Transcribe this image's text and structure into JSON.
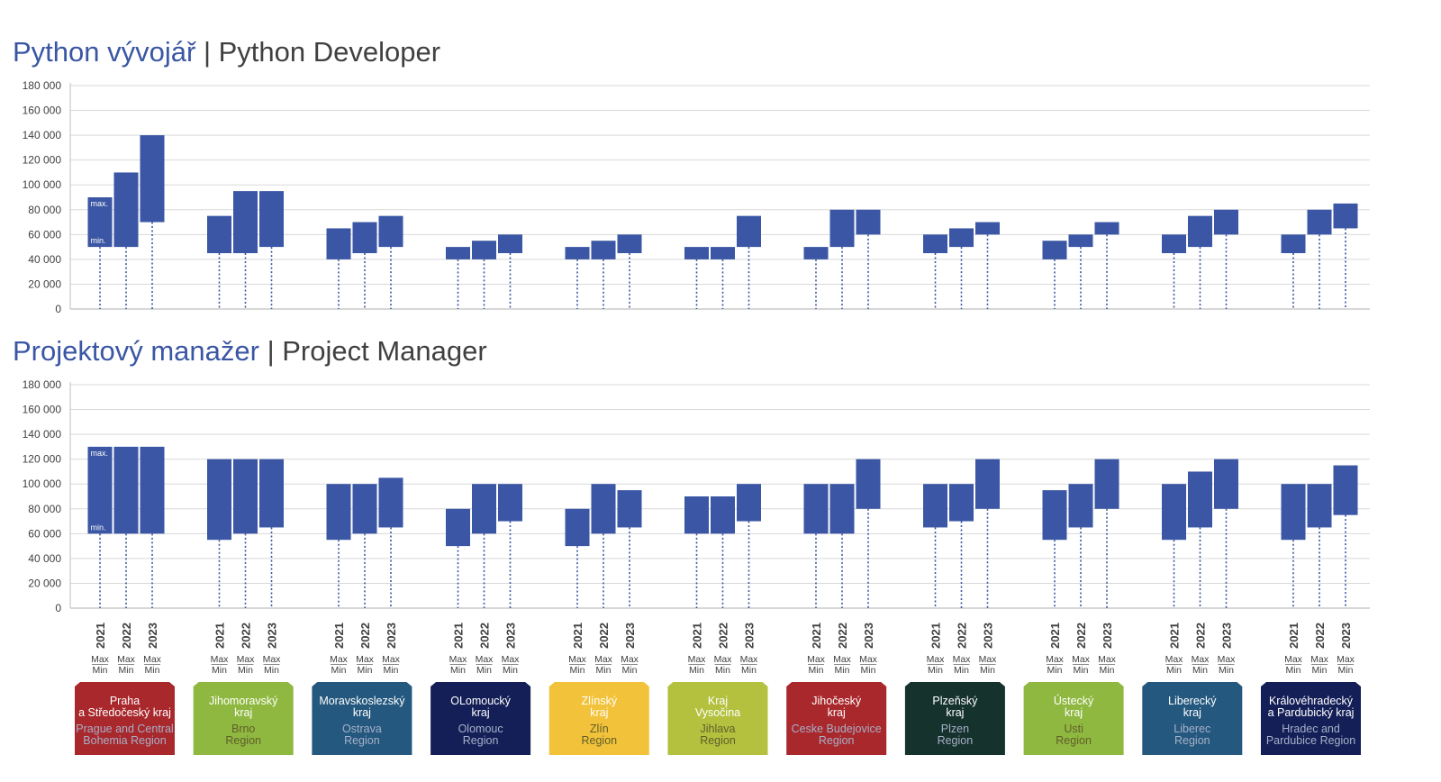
{
  "charts_meta": {
    "python": {
      "title_cz": "Python vývojář",
      "title_sep": " | ",
      "title_en": "Python Developer"
    },
    "pm": {
      "title_cz": "Projektový manažer",
      "title_sep": "  | ",
      "title_en": "Project Manager"
    }
  },
  "legend_labels": {
    "max": "max.",
    "min": "min."
  },
  "year_labels": [
    "2021",
    "2022",
    "2023"
  ],
  "maxmin_labels": {
    "max": "Max",
    "min": "Min"
  },
  "region_colors": [
    "#a8282c",
    "#8fb840",
    "#24587e",
    "#141f57",
    "#f2c23a",
    "#b3c13f",
    "#a8282c",
    "#15322c",
    "#8fb840",
    "#24587e",
    "#141f57"
  ],
  "regions": [
    {
      "cz": [
        "Praha",
        "a Středočeský kraj"
      ],
      "en": [
        "Prague and Central",
        "Bohemia Region"
      ]
    },
    {
      "cz": [
        "Jihomoravský",
        "kraj"
      ],
      "en": [
        "Brno",
        "Region"
      ]
    },
    {
      "cz": [
        "Moravskoslezský",
        "kraj"
      ],
      "en": [
        "Ostrava",
        "Region"
      ]
    },
    {
      "cz": [
        "OLomoucký",
        "kraj"
      ],
      "en": [
        "Olomouc",
        "Region"
      ]
    },
    {
      "cz": [
        "Zlínský",
        "kraj"
      ],
      "en": [
        "Zlín",
        "Region"
      ]
    },
    {
      "cz": [
        "Kraj",
        "Vysočina"
      ],
      "en": [
        "Jihlava",
        "Region"
      ]
    },
    {
      "cz": [
        "Jihočeský",
        "kraj"
      ],
      "en": [
        "Ceske Budejovice",
        "Region"
      ]
    },
    {
      "cz": [
        "Plzeňský",
        "kraj"
      ],
      "en": [
        "Plzen",
        "Region"
      ]
    },
    {
      "cz": [
        "Ústecký",
        "kraj"
      ],
      "en": [
        "Usti",
        "Region"
      ]
    },
    {
      "cz": [
        "Liberecký",
        "kraj"
      ],
      "en": [
        "Liberec",
        "Region"
      ]
    },
    {
      "cz": [
        "Královéhradecký",
        "a Pardubický kraj"
      ],
      "en": [
        "Hradec and",
        "Pardubice Region"
      ]
    }
  ],
  "chart_data": [
    {
      "type": "bar",
      "title": "Python vývojář | Python Developer",
      "ylim": [
        0,
        180000
      ],
      "yticks": [
        "0",
        "20 000",
        "40 000",
        "60 000",
        "80 000",
        "100 000",
        "120 000",
        "140 000",
        "160 000",
        "180 000"
      ],
      "grid": true,
      "bar_color": "#3a56a4",
      "ranges": [
        [
          [
            50000,
            90000
          ],
          [
            50000,
            110000
          ],
          [
            70000,
            140000
          ]
        ],
        [
          [
            45000,
            75000
          ],
          [
            45000,
            95000
          ],
          [
            50000,
            95000
          ]
        ],
        [
          [
            40000,
            65000
          ],
          [
            45000,
            70000
          ],
          [
            50000,
            75000
          ]
        ],
        [
          [
            40000,
            50000
          ],
          [
            40000,
            55000
          ],
          [
            45000,
            60000
          ]
        ],
        [
          [
            40000,
            50000
          ],
          [
            40000,
            55000
          ],
          [
            45000,
            60000
          ]
        ],
        [
          [
            40000,
            50000
          ],
          [
            40000,
            50000
          ],
          [
            50000,
            75000
          ]
        ],
        [
          [
            40000,
            50000
          ],
          [
            50000,
            80000
          ],
          [
            60000,
            80000
          ]
        ],
        [
          [
            45000,
            60000
          ],
          [
            50000,
            65000
          ],
          [
            60000,
            70000
          ]
        ],
        [
          [
            40000,
            55000
          ],
          [
            50000,
            60000
          ],
          [
            60000,
            70000
          ]
        ],
        [
          [
            45000,
            60000
          ],
          [
            50000,
            75000
          ],
          [
            60000,
            80000
          ]
        ],
        [
          [
            45000,
            60000
          ],
          [
            60000,
            80000
          ],
          [
            65000,
            85000
          ]
        ]
      ]
    },
    {
      "type": "bar",
      "title": "Projektový manažer | Project Manager",
      "ylim": [
        0,
        180000
      ],
      "yticks": [
        "0",
        "20 000",
        "40 000",
        "60 000",
        "80 000",
        "100 000",
        "120 000",
        "140 000",
        "160 000",
        "180 000"
      ],
      "grid": true,
      "bar_color": "#3a56a4",
      "ranges": [
        [
          [
            60000,
            130000
          ],
          [
            60000,
            130000
          ],
          [
            60000,
            130000
          ]
        ],
        [
          [
            55000,
            120000
          ],
          [
            60000,
            120000
          ],
          [
            65000,
            120000
          ]
        ],
        [
          [
            55000,
            100000
          ],
          [
            60000,
            100000
          ],
          [
            65000,
            105000
          ]
        ],
        [
          [
            50000,
            80000
          ],
          [
            60000,
            100000
          ],
          [
            70000,
            100000
          ]
        ],
        [
          [
            50000,
            80000
          ],
          [
            60000,
            100000
          ],
          [
            65000,
            95000
          ]
        ],
        [
          [
            60000,
            90000
          ],
          [
            60000,
            90000
          ],
          [
            70000,
            100000
          ]
        ],
        [
          [
            60000,
            100000
          ],
          [
            60000,
            100000
          ],
          [
            80000,
            120000
          ]
        ],
        [
          [
            65000,
            100000
          ],
          [
            70000,
            100000
          ],
          [
            80000,
            120000
          ]
        ],
        [
          [
            55000,
            95000
          ],
          [
            65000,
            100000
          ],
          [
            80000,
            120000
          ]
        ],
        [
          [
            55000,
            100000
          ],
          [
            65000,
            110000
          ],
          [
            80000,
            120000
          ]
        ],
        [
          [
            55000,
            100000
          ],
          [
            65000,
            100000
          ],
          [
            75000,
            115000
          ]
        ]
      ]
    }
  ]
}
